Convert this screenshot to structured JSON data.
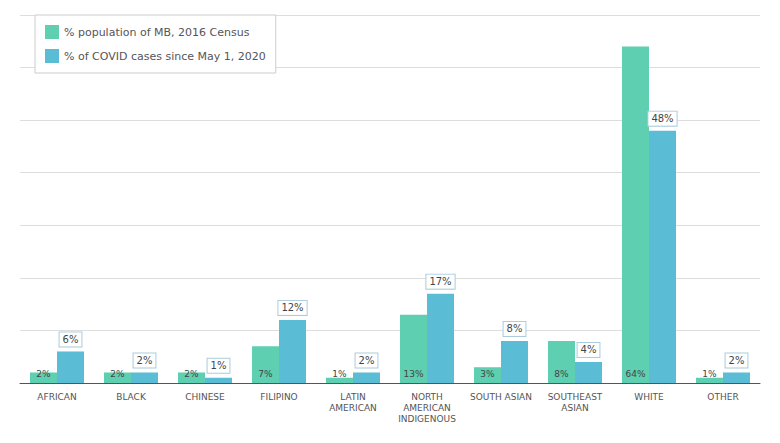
{
  "chart_data": {
    "type": "bar",
    "categories": [
      "AFRICAN",
      "BLACK",
      "CHINESE",
      "FILIPINO",
      "LATIN\nAMERICAN",
      "NORTH\nAMERICAN\nINDIGENOUS",
      "SOUTH ASIAN",
      "SOUTHEAST\nASIAN",
      "WHITE",
      "OTHER"
    ],
    "series": [
      {
        "name": "% population of MB, 2016 Census",
        "color": "#5ecfb1",
        "values": [
          2,
          2,
          2,
          7,
          1,
          13,
          3,
          8,
          64,
          1
        ],
        "value_labels": [
          "2%",
          "2%",
          "2%",
          "7%",
          "1%",
          "13%",
          "3%",
          "8%",
          "64%",
          "1%"
        ]
      },
      {
        "name": "% of COVID cases since May 1, 2020",
        "color": "#5bbcd6",
        "values": [
          6,
          2,
          1,
          12,
          2,
          17,
          8,
          4,
          48,
          2
        ],
        "value_labels": [
          "6%",
          "2%",
          "1%",
          "12%",
          "2%",
          "17%",
          "8%",
          "4%",
          "48%",
          "2%"
        ]
      }
    ],
    "ylim": [
      0,
      70
    ],
    "yticks": [
      0,
      10,
      20,
      30,
      40,
      50,
      60,
      70
    ],
    "grid": true,
    "legend": "upper left",
    "data_labels": true,
    "tick_labels": "x"
  }
}
